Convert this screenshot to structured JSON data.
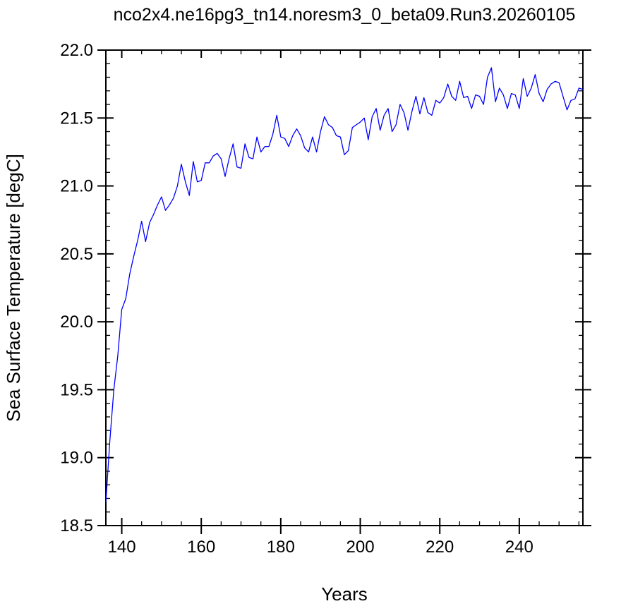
{
  "chart_data": {
    "type": "line",
    "title": "nco2x4.ne16pg3_tn14.noresm3_0_beta09.Run3.20260105",
    "xlabel": "Years",
    "ylabel": "Sea Surface Temperature [degC]",
    "xlim": [
      136,
      256
    ],
    "ylim": [
      18.5,
      22.0
    ],
    "xticks": [
      140,
      160,
      180,
      200,
      220,
      240
    ],
    "xtick_labels": [
      "140",
      "160",
      "180",
      "200",
      "220",
      "240"
    ],
    "yticks": [
      18.5,
      19.0,
      19.5,
      20.0,
      20.5,
      21.0,
      21.5,
      22.0
    ],
    "ytick_labels": [
      "18.5",
      "19.0",
      "19.5",
      "20.0",
      "20.5",
      "21.0",
      "21.5",
      "22.0"
    ],
    "grid": false,
    "line_color": "#0000ff",
    "series": [
      {
        "x": [
          136,
          137,
          138,
          139,
          140,
          141,
          142,
          143,
          144,
          145,
          146,
          147,
          148,
          149,
          150,
          151,
          152,
          153,
          154,
          155,
          156,
          157,
          158,
          159,
          160,
          161,
          162,
          163,
          164,
          165,
          166,
          167,
          168,
          169,
          170,
          171,
          172,
          173,
          174,
          175,
          176,
          177,
          178,
          179,
          180,
          181,
          182,
          183,
          184,
          185,
          186,
          187,
          188,
          189,
          190,
          191,
          192,
          193,
          194,
          195,
          196,
          197,
          198,
          199,
          200,
          201,
          202,
          203,
          204,
          205,
          206,
          207,
          208,
          209,
          210,
          211,
          212,
          213,
          214,
          215,
          216,
          217,
          218,
          219,
          220,
          221,
          222,
          223,
          224,
          225,
          226,
          227,
          228,
          229,
          230,
          231,
          232,
          233,
          234,
          235,
          236,
          237,
          238,
          239,
          240,
          241,
          242,
          243,
          244,
          245,
          246,
          247,
          248,
          249,
          250,
          251,
          252,
          253,
          254,
          255,
          256
        ],
        "values": [
          18.67,
          19.12,
          19.5,
          19.75,
          20.09,
          20.17,
          20.35,
          20.48,
          20.6,
          20.74,
          20.59,
          20.73,
          20.79,
          20.86,
          20.92,
          20.82,
          20.86,
          20.91,
          21.0,
          21.16,
          21.03,
          20.93,
          21.18,
          21.03,
          21.04,
          21.17,
          21.17,
          21.22,
          21.24,
          21.2,
          21.07,
          21.2,
          21.31,
          21.14,
          21.13,
          21.31,
          21.21,
          21.2,
          21.36,
          21.25,
          21.29,
          21.29,
          21.38,
          21.52,
          21.36,
          21.35,
          21.29,
          21.37,
          21.42,
          21.37,
          21.28,
          21.25,
          21.36,
          21.25,
          21.4,
          21.51,
          21.45,
          21.43,
          21.37,
          21.36,
          21.23,
          21.26,
          21.43,
          21.45,
          21.47,
          21.5,
          21.34,
          21.51,
          21.57,
          21.41,
          21.52,
          21.57,
          21.4,
          21.45,
          21.6,
          21.54,
          21.41,
          21.55,
          21.66,
          21.53,
          21.65,
          21.54,
          21.52,
          21.63,
          21.61,
          21.65,
          21.75,
          21.66,
          21.63,
          21.77,
          21.65,
          21.66,
          21.57,
          21.67,
          21.66,
          21.6,
          21.8,
          21.87,
          21.62,
          21.72,
          21.67,
          21.57,
          21.68,
          21.67,
          21.57,
          21.79,
          21.66,
          21.72,
          21.82,
          21.68,
          21.62,
          21.71,
          21.75,
          21.77,
          21.76,
          21.66,
          21.56,
          21.63,
          21.64,
          21.72,
          21.71
        ]
      }
    ]
  }
}
